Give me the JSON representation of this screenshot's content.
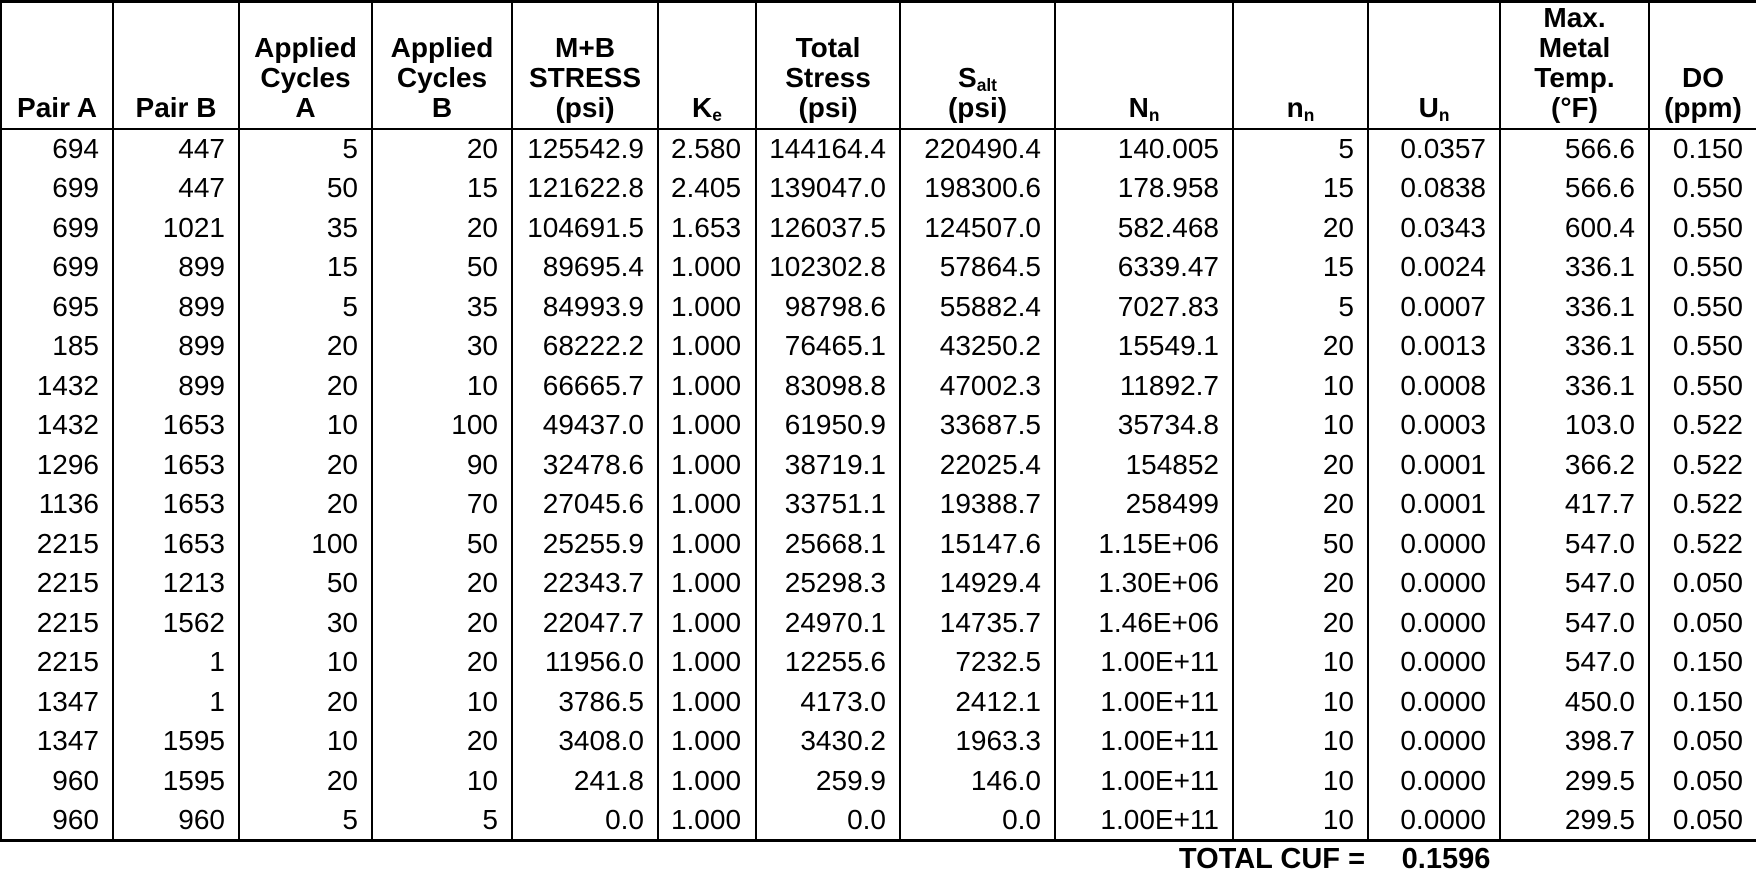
{
  "table": {
    "columns": [
      {
        "name": "pair-a",
        "lines": [
          {
            "t": "Pair A"
          }
        ]
      },
      {
        "name": "pair-b",
        "lines": [
          {
            "t": "Pair B"
          }
        ]
      },
      {
        "name": "applied-cycles-a",
        "lines": [
          {
            "t": "Applied"
          },
          {
            "t": "Cycles"
          },
          {
            "t": "A"
          }
        ]
      },
      {
        "name": "applied-cycles-b",
        "lines": [
          {
            "t": "Applied"
          },
          {
            "t": "Cycles"
          },
          {
            "t": "B"
          }
        ]
      },
      {
        "name": "mb-stress-psi",
        "lines": [
          {
            "t": "M+B"
          },
          {
            "t": "STRESS"
          },
          {
            "t": "(psi)"
          }
        ]
      },
      {
        "name": "ke",
        "lines": [
          {
            "t": "K",
            "sub": "e"
          }
        ]
      },
      {
        "name": "total-stress-psi",
        "lines": [
          {
            "t": "Total"
          },
          {
            "t": "Stress"
          },
          {
            "t": "(psi)"
          }
        ]
      },
      {
        "name": "salt-psi",
        "lines": [
          {
            "t": "S",
            "sub": "alt"
          },
          {
            "t": "(psi)"
          }
        ]
      },
      {
        "name": "allowable-cycles-nn",
        "lines": [
          {
            "t": "N",
            "sub": "n"
          }
        ]
      },
      {
        "name": "applied-cycles-nn",
        "lines": [
          {
            "t": "n",
            "sub": "n"
          }
        ]
      },
      {
        "name": "usage-factor-un",
        "lines": [
          {
            "t": "U",
            "sub": "n"
          }
        ]
      },
      {
        "name": "max-metal-temp-f",
        "lines": [
          {
            "t": "Max."
          },
          {
            "t": "Metal"
          },
          {
            "t": "Temp."
          },
          {
            "t": "(°F)"
          }
        ]
      },
      {
        "name": "do-ppm",
        "lines": [
          {
            "t": "DO"
          },
          {
            "t": "(ppm)"
          }
        ]
      }
    ],
    "rows": [
      [
        "694",
        "447",
        "5",
        "20",
        "125542.9",
        "2.580",
        "144164.4",
        "220490.4",
        "140.005",
        "5",
        "0.0357",
        "566.6",
        "0.150"
      ],
      [
        "699",
        "447",
        "50",
        "15",
        "121622.8",
        "2.405",
        "139047.0",
        "198300.6",
        "178.958",
        "15",
        "0.0838",
        "566.6",
        "0.550"
      ],
      [
        "699",
        "1021",
        "35",
        "20",
        "104691.5",
        "1.653",
        "126037.5",
        "124507.0",
        "582.468",
        "20",
        "0.0343",
        "600.4",
        "0.550"
      ],
      [
        "699",
        "899",
        "15",
        "50",
        "89695.4",
        "1.000",
        "102302.8",
        "57864.5",
        "6339.47",
        "15",
        "0.0024",
        "336.1",
        "0.550"
      ],
      [
        "695",
        "899",
        "5",
        "35",
        "84993.9",
        "1.000",
        "98798.6",
        "55882.4",
        "7027.83",
        "5",
        "0.0007",
        "336.1",
        "0.550"
      ],
      [
        "185",
        "899",
        "20",
        "30",
        "68222.2",
        "1.000",
        "76465.1",
        "43250.2",
        "15549.1",
        "20",
        "0.0013",
        "336.1",
        "0.550"
      ],
      [
        "1432",
        "899",
        "20",
        "10",
        "66665.7",
        "1.000",
        "83098.8",
        "47002.3",
        "11892.7",
        "10",
        "0.0008",
        "336.1",
        "0.550"
      ],
      [
        "1432",
        "1653",
        "10",
        "100",
        "49437.0",
        "1.000",
        "61950.9",
        "33687.5",
        "35734.8",
        "10",
        "0.0003",
        "103.0",
        "0.522"
      ],
      [
        "1296",
        "1653",
        "20",
        "90",
        "32478.6",
        "1.000",
        "38719.1",
        "22025.4",
        "154852",
        "20",
        "0.0001",
        "366.2",
        "0.522"
      ],
      [
        "1136",
        "1653",
        "20",
        "70",
        "27045.6",
        "1.000",
        "33751.1",
        "19388.7",
        "258499",
        "20",
        "0.0001",
        "417.7",
        "0.522"
      ],
      [
        "2215",
        "1653",
        "100",
        "50",
        "25255.9",
        "1.000",
        "25668.1",
        "15147.6",
        "1.15E+06",
        "50",
        "0.0000",
        "547.0",
        "0.522"
      ],
      [
        "2215",
        "1213",
        "50",
        "20",
        "22343.7",
        "1.000",
        "25298.3",
        "14929.4",
        "1.30E+06",
        "20",
        "0.0000",
        "547.0",
        "0.050"
      ],
      [
        "2215",
        "1562",
        "30",
        "20",
        "22047.7",
        "1.000",
        "24970.1",
        "14735.7",
        "1.46E+06",
        "20",
        "0.0000",
        "547.0",
        "0.050"
      ],
      [
        "2215",
        "1",
        "10",
        "20",
        "11956.0",
        "1.000",
        "12255.6",
        "7232.5",
        "1.00E+11",
        "10",
        "0.0000",
        "547.0",
        "0.150"
      ],
      [
        "1347",
        "1",
        "20",
        "10",
        "3786.5",
        "1.000",
        "4173.0",
        "2412.1",
        "1.00E+11",
        "10",
        "0.0000",
        "450.0",
        "0.150"
      ],
      [
        "1347",
        "1595",
        "10",
        "20",
        "3408.0",
        "1.000",
        "3430.2",
        "1963.3",
        "1.00E+11",
        "10",
        "0.0000",
        "398.7",
        "0.050"
      ],
      [
        "960",
        "1595",
        "20",
        "10",
        "241.8",
        "1.000",
        "259.9",
        "146.0",
        "1.00E+11",
        "10",
        "0.0000",
        "299.5",
        "0.050"
      ],
      [
        "960",
        "960",
        "5",
        "5",
        "0.0",
        "1.000",
        "0.0",
        "0.0",
        "1.00E+11",
        "10",
        "0.0000",
        "299.5",
        "0.050"
      ]
    ]
  },
  "footer": {
    "label": "TOTAL CUF =",
    "value": "0.1596"
  }
}
